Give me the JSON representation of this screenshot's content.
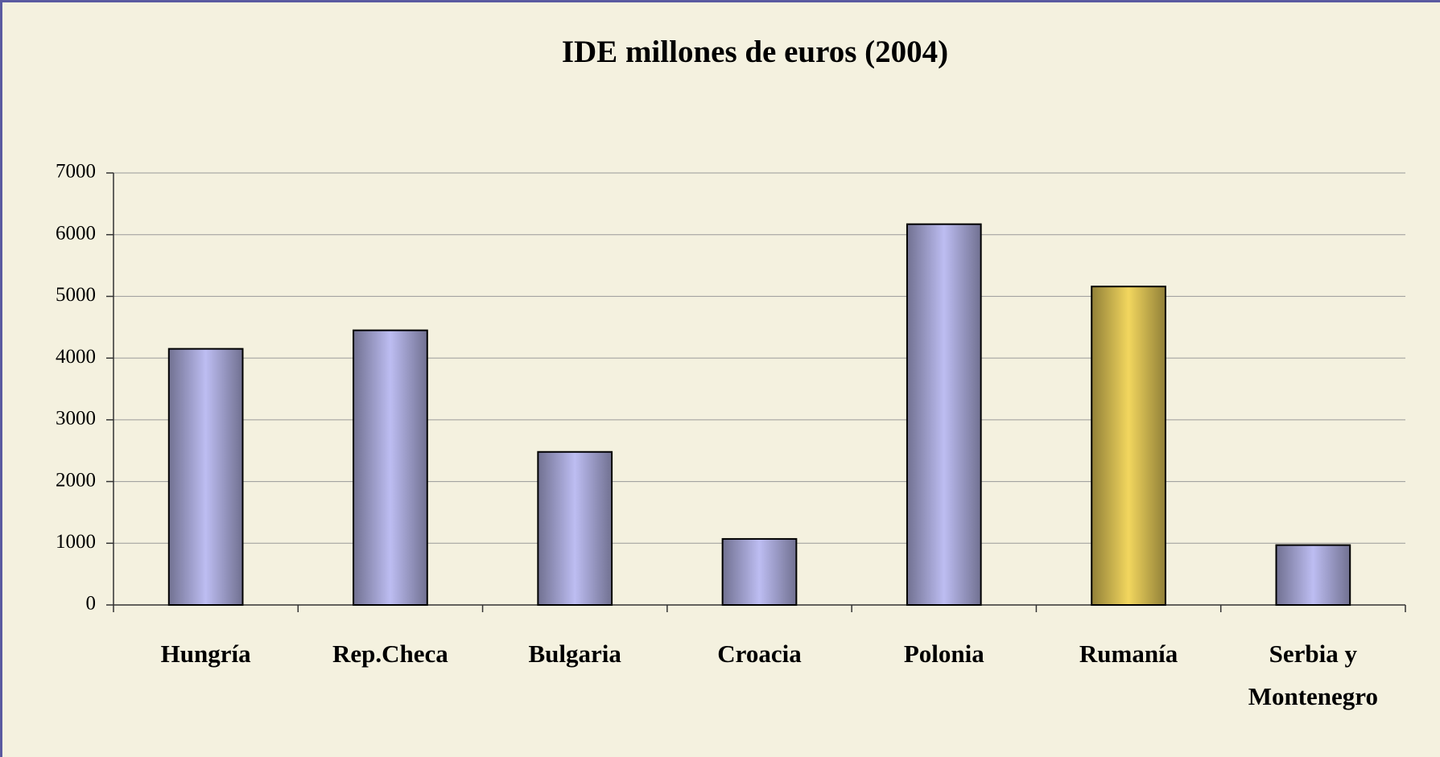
{
  "chart_data": {
    "type": "bar",
    "title": "IDE millones de euros (2004)",
    "categories": [
      "Hungría",
      "Rep.Checa",
      "Bulgaria",
      "Croacia",
      "Polonia",
      "Rumanía",
      "Serbia y Montenegro"
    ],
    "values": [
      4150,
      4450,
      2480,
      1070,
      6170,
      5160,
      970
    ],
    "colors": [
      "#bdbdf2",
      "#bdbdf2",
      "#bdbdf2",
      "#bdbdf2",
      "#bdbdf2",
      "#f2d65e",
      "#bdbdf2"
    ],
    "ylim": [
      0,
      7000
    ],
    "yticks": [
      0,
      1000,
      2000,
      3000,
      4000,
      5000,
      6000,
      7000
    ],
    "grid": true
  }
}
